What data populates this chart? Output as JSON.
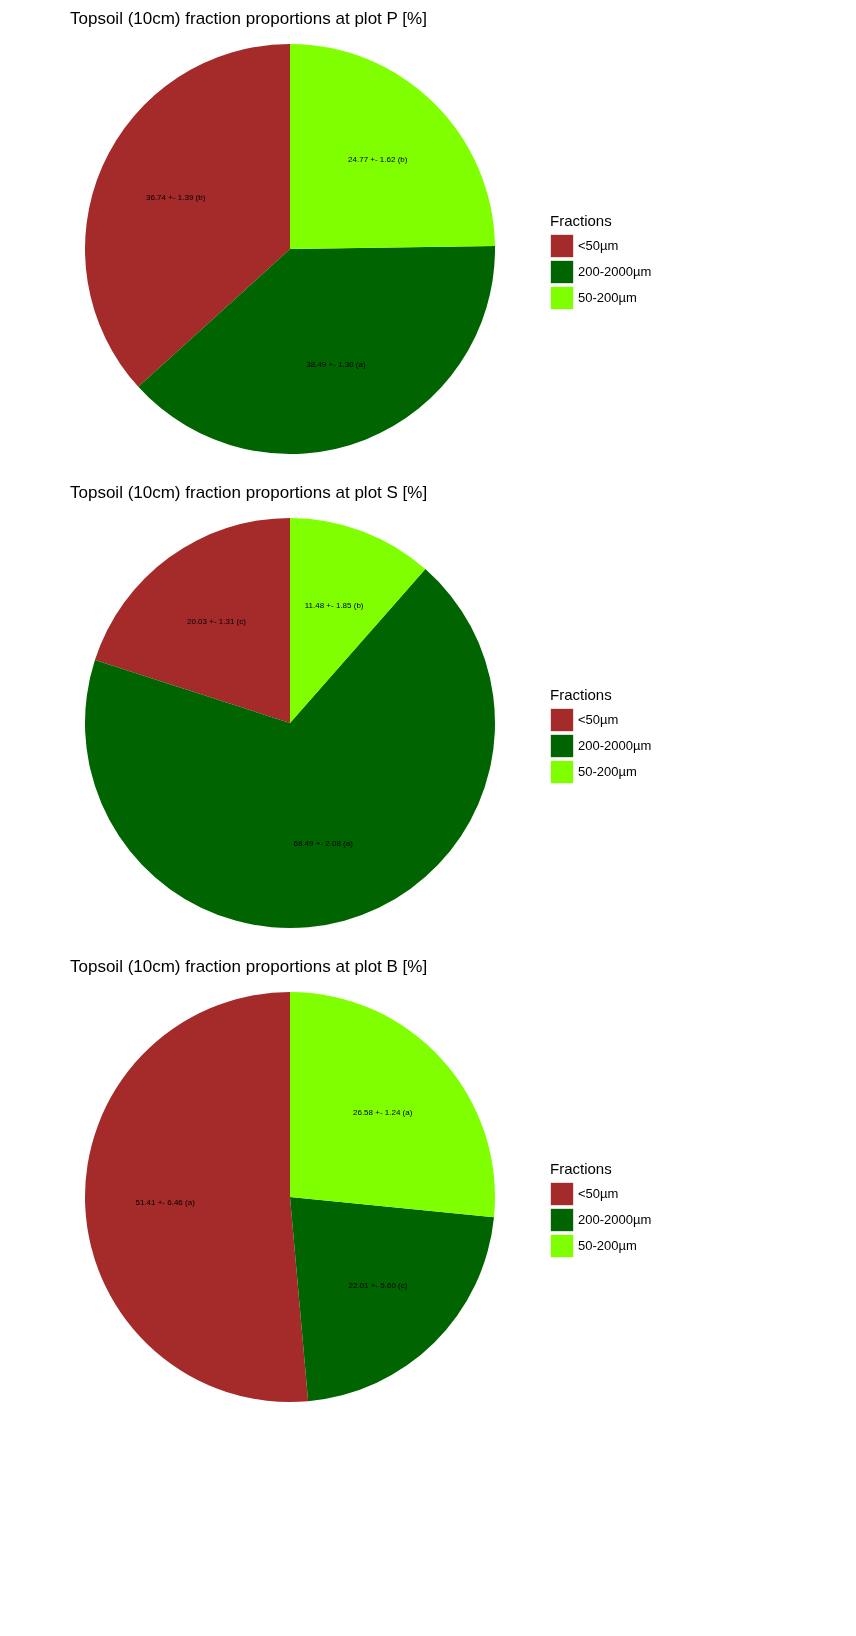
{
  "chart_data": [
    {
      "type": "pie",
      "title": "Topsoil (10cm) fraction proportions at plot P [%]",
      "legend_title": "Fractions",
      "legend": "right",
      "categories": [
        "<50µm",
        "200-2000µm",
        "50-200µm"
      ],
      "values": [
        36.74,
        38.49,
        24.77
      ],
      "colors": [
        "#a52a2a",
        "#006400",
        "#7fff00"
      ],
      "value_labels": [
        "36.74 +- 1.39 (b)",
        "38.49 +- 1.30 (a)",
        "24.77 +- 1.62 (b)"
      ]
    },
    {
      "type": "pie",
      "title": "Topsoil (10cm) fraction proportions at plot S [%]",
      "legend_title": "Fractions",
      "legend": "right",
      "categories": [
        "<50µm",
        "200-2000µm",
        "50-200µm"
      ],
      "values": [
        20.03,
        68.49,
        11.48
      ],
      "colors": [
        "#a52a2a",
        "#006400",
        "#7fff00"
      ],
      "value_labels": [
        "20.03 +- 1.31 (c)",
        "68.49 +- 2.08 (a)",
        "11.48 +- 1.85 (b)"
      ]
    },
    {
      "type": "pie",
      "title": "Topsoil (10cm) fraction proportions at plot B [%]",
      "legend_title": "Fractions",
      "legend": "right",
      "categories": [
        "<50µm",
        "200-2000µm",
        "50-200µm"
      ],
      "values": [
        51.41,
        22.01,
        26.58
      ],
      "colors": [
        "#a52a2a",
        "#006400",
        "#7fff00"
      ],
      "value_labels": [
        "51.41 +- 6.46 (a)",
        "22.01 +- 5.60 (c)",
        "26.58 +- 1.24 (a)"
      ]
    }
  ]
}
